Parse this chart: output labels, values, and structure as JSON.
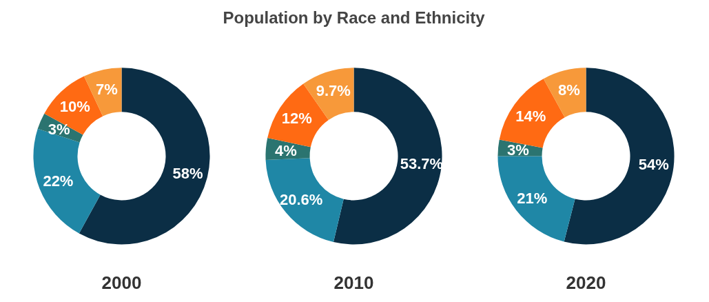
{
  "chart_data": [
    {
      "type": "donut",
      "xlabel": "2000",
      "categories": [
        null,
        null,
        null,
        null,
        null
      ],
      "values": [
        58,
        22,
        3,
        10,
        7
      ],
      "value_labels": [
        "58%",
        "22%",
        "3%",
        "10%",
        "7%"
      ],
      "colors": [
        "#0b2e45",
        "#1f87a6",
        "#2b7470",
        "#ff6a13",
        "#f7993a"
      ]
    },
    {
      "type": "donut",
      "title": "Population by Race and Ethnicity",
      "xlabel": "2010",
      "categories": [
        null,
        null,
        null,
        null,
        null
      ],
      "values": [
        53.7,
        20.6,
        4,
        12,
        9.7
      ],
      "value_labels": [
        "53.7%",
        "20.6%",
        "4%",
        "12%",
        "9.7%"
      ],
      "colors": [
        "#0b2e45",
        "#1f87a6",
        "#2b7470",
        "#ff6a13",
        "#f7993a"
      ]
    },
    {
      "type": "donut",
      "xlabel": "2020",
      "categories": [
        null,
        null,
        null,
        null,
        null
      ],
      "values": [
        54,
        21,
        3,
        14,
        8
      ],
      "value_labels": [
        "54%",
        "21%",
        "3%",
        "14%",
        "8%"
      ],
      "colors": [
        "#0b2e45",
        "#1f87a6",
        "#2b7470",
        "#ff6a13",
        "#f7993a"
      ]
    }
  ]
}
